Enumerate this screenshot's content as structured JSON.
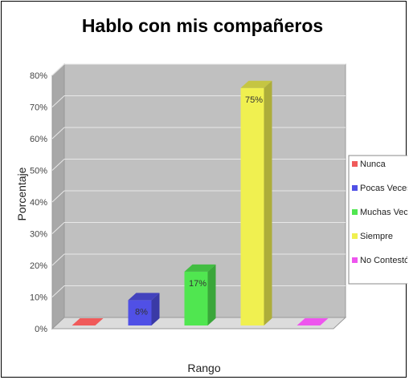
{
  "chart_data": {
    "type": "bar",
    "title": "Hablo con mis compañeros",
    "xlabel": "Rango",
    "ylabel": "Porcentaje",
    "ylim": [
      0,
      80
    ],
    "yticks": [
      "0%",
      "10%",
      "20%",
      "30%",
      "40%",
      "50%",
      "60%",
      "70%",
      "80%"
    ],
    "grid": true,
    "legend_position": "right",
    "categories": [
      "Nunca",
      "Pocas Veces",
      "Muchas Veces",
      "Siempre",
      "No Contestó"
    ],
    "values": [
      0,
      8,
      17,
      75,
      0
    ],
    "data_labels": [
      "",
      "8%",
      "17%",
      "75%",
      ""
    ],
    "colors": [
      "#f05a5a",
      "#5050e6",
      "#50e650",
      "#f0f050",
      "#ee55ee"
    ],
    "plot_background": "#c0c0c0"
  }
}
